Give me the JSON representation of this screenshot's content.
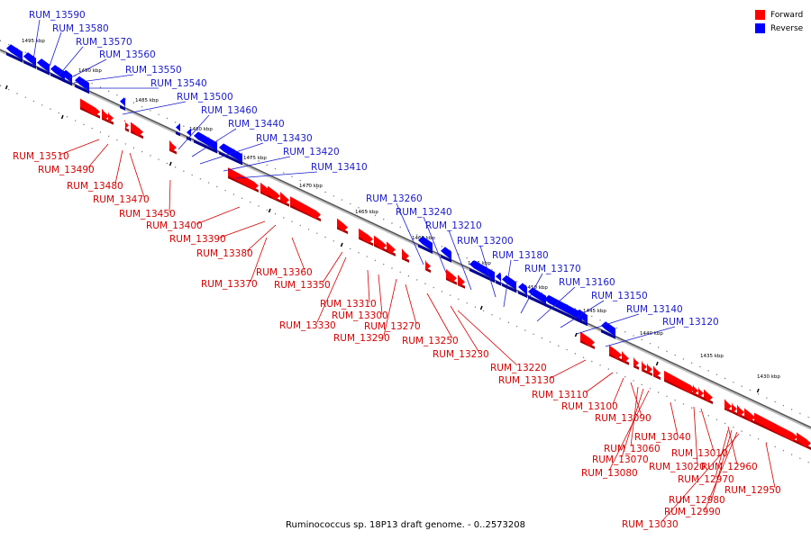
{
  "legend": [
    {
      "label": "Forward",
      "color": "#ff0000"
    },
    {
      "label": "Reverse",
      "color": "#0000ff"
    }
  ],
  "caption": "Ruminococcus sp. 18P13 draft genome. - 0..2573208",
  "ticks": [
    "1495 kbp",
    "1490 kbp",
    "1485 kbp",
    "1480 kbp",
    "1475 kbp",
    "1470 kbp",
    "1465 kbp",
    "1460 kbp",
    "1455 kbp",
    "1450 kbp",
    "1445 kbp",
    "1440 kbp",
    "1435 kbp",
    "1430 kbp"
  ],
  "reverse_labels": [
    "RUM_13590",
    "RUM_13580",
    "RUM_13570",
    "RUM_13560",
    "RUM_13550",
    "RUM_13540",
    "RUM_13500",
    "RUM_13460",
    "RUM_13440",
    "RUM_13430",
    "RUM_13420",
    "RUM_13410",
    "RUM_13260",
    "RUM_13240",
    "RUM_13210",
    "RUM_13200",
    "RUM_13180",
    "RUM_13170",
    "RUM_13160",
    "RUM_13150",
    "RUM_13140",
    "RUM_13120"
  ],
  "forward_labels": [
    "RUM_13510",
    "RUM_13490",
    "RUM_13480",
    "RUM_13470",
    "RUM_13450",
    "RUM_13400",
    "RUM_13390",
    "RUM_13380",
    "RUM_13370",
    "RUM_13360",
    "RUM_13350",
    "RUM_13330",
    "RUM_13310",
    "RUM_13300",
    "RUM_13290",
    "RUM_13270",
    "RUM_13250",
    "RUM_13230",
    "RUM_13220",
    "RUM_13130",
    "RUM_13110",
    "RUM_13100",
    "RUM_13090",
    "RUM_13060",
    "RUM_13070",
    "RUM_13080",
    "RUM_13040",
    "RUM_13020",
    "RUM_13010",
    "RUM_12960",
    "RUM_12970",
    "RUM_12980",
    "RUM_12990",
    "RUM_13030",
    "RUM_12950"
  ]
}
